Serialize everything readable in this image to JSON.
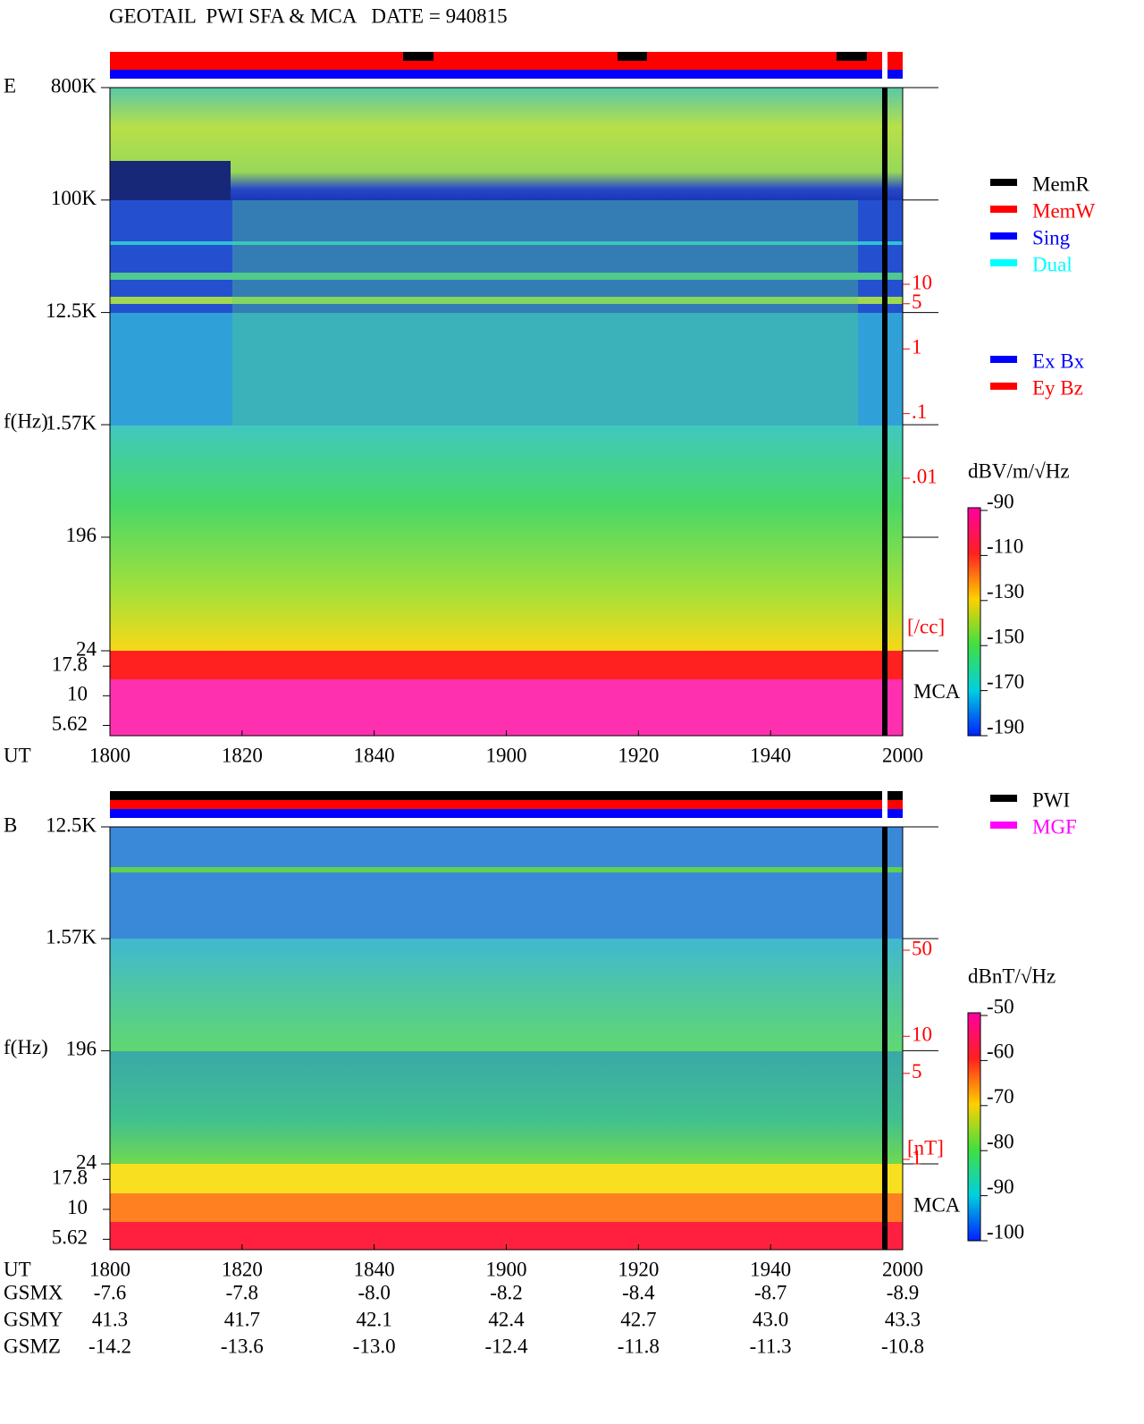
{
  "title": "GEOTAIL  PWI SFA & MCA   DATE = 940815",
  "chart_data": [
    {
      "type": "spectrogram",
      "panel_label": "E",
      "y_label": "f(Hz)",
      "x_label": "UT",
      "log_y": true,
      "ylim": [
        24,
        800000
      ],
      "yticks": [
        {
          "value": 800000,
          "label": "800K"
        },
        {
          "value": 100000,
          "label": "100K"
        },
        {
          "value": 12500,
          "label": "12.5K"
        },
        {
          "value": 1570,
          "label": "1.57K"
        },
        196,
        24
      ],
      "mca_label": "MCA",
      "mca_ylim": [
        4.6,
        24
      ],
      "mca_ticks": [
        17.8,
        10,
        5.62
      ],
      "xticks": [
        "1800",
        "1820",
        "1840",
        "1900",
        "1920",
        "1940",
        "2000"
      ],
      "status_legend": [
        {
          "name": "MemR",
          "color": "#000000"
        },
        {
          "name": "MemW",
          "color": "#ff0000"
        },
        {
          "name": "Sing",
          "color": "#0000ff"
        },
        {
          "name": "Dual",
          "color": "#00ffff"
        }
      ],
      "mode_legend": [
        {
          "name": "Ex Bx",
          "color": "#0000ff"
        },
        {
          "name": "Ey Bz",
          "color": "#ff0000"
        }
      ],
      "colorbar": {
        "label": "dBV/m/√Hz",
        "lim": [
          -190,
          -90
        ],
        "ticks": [
          -90,
          -110,
          -130,
          -150,
          -170,
          -190
        ]
      },
      "right_axis": {
        "unit": "[/cc]",
        "log": true,
        "lim": [
          0.01,
          10
        ],
        "color": "#ff0000",
        "ticks": [
          10,
          5,
          1,
          {
            "value": 0.1,
            "label": ".1"
          },
          {
            "value": 0.01,
            "label": ".01"
          }
        ]
      }
    },
    {
      "type": "spectrogram",
      "panel_label": "B",
      "y_label": "f(Hz)",
      "x_label": "UT",
      "log_y": true,
      "ylim": [
        24,
        12500
      ],
      "yticks": [
        {
          "value": 12500,
          "label": "12.5K"
        },
        {
          "value": 1570,
          "label": "1.57K"
        },
        196,
        24
      ],
      "mca_label": "MCA",
      "mca_ylim": [
        4.6,
        24
      ],
      "mca_ticks": [
        17.8,
        10,
        5.62
      ],
      "xticks": [
        "1800",
        "1820",
        "1840",
        "1900",
        "1920",
        "1940",
        "2000"
      ],
      "status_legend": [
        {
          "name": "PWI",
          "color": "#000000"
        },
        {
          "name": "MGF",
          "color": "#ff00ff"
        }
      ],
      "colorbar": {
        "label": "dBnT/√Hz",
        "lim": [
          -100,
          -50
        ],
        "ticks": [
          -50,
          -60,
          -70,
          -80,
          -90,
          -100
        ]
      },
      "right_axis": {
        "unit": "[nT]",
        "log": true,
        "lim": [
          1,
          50
        ],
        "color": "#ff0000",
        "ticks": [
          50,
          10,
          5,
          1
        ]
      }
    }
  ],
  "orbit": {
    "rows": [
      {
        "label": "GSMX",
        "values": [
          "-7.6",
          "-7.8",
          "-8.0",
          "-8.2",
          "-8.4",
          "-8.7",
          "-8.9"
        ]
      },
      {
        "label": "GSMY",
        "values": [
          "41.3",
          "41.7",
          "42.1",
          "42.4",
          "42.7",
          "43.0",
          "43.3"
        ]
      },
      {
        "label": "GSMZ",
        "values": [
          "-14.2",
          "-13.6",
          "-13.0",
          "-12.4",
          "-11.8",
          "-11.3",
          "-10.8"
        ]
      }
    ]
  }
}
